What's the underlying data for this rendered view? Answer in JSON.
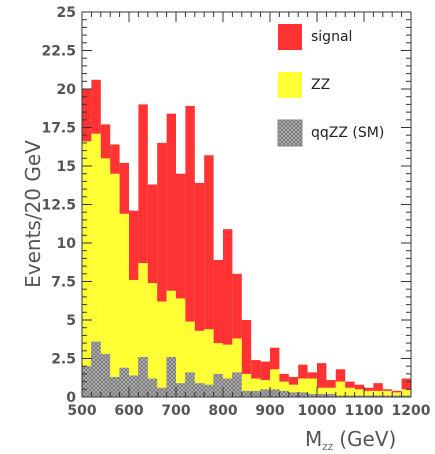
{
  "chart_data": {
    "type": "bar",
    "stacked": true,
    "title": "",
    "xlabel": "M",
    "xlabel_sub": "ZZ",
    "xlabel_unit": "(GeV)",
    "ylabel": "Events/20 GeV",
    "xlim": [
      500,
      1200
    ],
    "ylim": [
      0,
      25
    ],
    "bin_width": 20,
    "x_ticks": [
      500,
      600,
      700,
      800,
      900,
      1000,
      1100,
      1200
    ],
    "y_ticks": [
      0,
      2.5,
      5,
      7.5,
      10,
      12.5,
      15,
      17.5,
      20,
      22.5,
      25
    ],
    "y_tick_labels": [
      "0",
      "2.5",
      "5",
      "7.5",
      "10",
      "12.5",
      "15",
      "17.5",
      "20",
      "22.5",
      "25"
    ],
    "legend_position": "top-right",
    "x": [
      510,
      530,
      550,
      570,
      590,
      610,
      630,
      650,
      670,
      690,
      710,
      730,
      750,
      770,
      790,
      810,
      830,
      850,
      870,
      890,
      910,
      930,
      950,
      970,
      990,
      1010,
      1030,
      1050,
      1070,
      1090,
      1110,
      1130,
      1150,
      1170,
      1190
    ],
    "series": [
      {
        "name": "qqZZ (SM)",
        "color": "#a9a9a9",
        "pattern": "crosshatch",
        "values": [
          2.0,
          3.6,
          2.8,
          1.3,
          1.9,
          1.4,
          2.6,
          1.2,
          0.6,
          2.6,
          0.9,
          1.6,
          0.9,
          0.8,
          1.5,
          1.2,
          1.6,
          0.4,
          0.4,
          0.5,
          0.5,
          0.4,
          0.3,
          0.3,
          0.2,
          0.2,
          0.2,
          0.1,
          0.1,
          0.1,
          0.1,
          0.1,
          0.1,
          0.1,
          0.1
        ]
      },
      {
        "name": "ZZ",
        "color": "#ffff33",
        "values": [
          14.6,
          13.5,
          12.7,
          13.2,
          10.0,
          6.2,
          6.1,
          6.2,
          5.6,
          4.3,
          5.5,
          3.3,
          3.4,
          3.6,
          2.0,
          2.2,
          2.2,
          1.1,
          0.8,
          0.6,
          1.3,
          0.6,
          0.5,
          0.9,
          1.0,
          0.4,
          0.4,
          0.9,
          0.5,
          0.4,
          0.3,
          0.3,
          0.3,
          0.2,
          0.4
        ]
      },
      {
        "name": "signal",
        "color": "#ff3333",
        "values": [
          3.4,
          3.5,
          2.2,
          1.9,
          3.3,
          4.5,
          10.3,
          6.4,
          10.3,
          11.5,
          8.1,
          14.0,
          9.6,
          11.3,
          5.4,
          7.5,
          4.2,
          3.5,
          1.2,
          1.2,
          1.4,
          0.5,
          0.5,
          0.9,
          0.4,
          1.6,
          0.5,
          0.8,
          0.4,
          0.3,
          0.2,
          0.5,
          0.1,
          0.1,
          0.7
        ]
      }
    ]
  }
}
